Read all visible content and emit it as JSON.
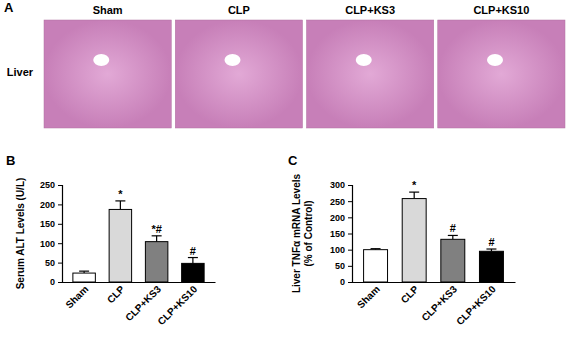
{
  "images": {
    "label": "A",
    "row_label": "Liver",
    "columns": [
      "Sham",
      "CLP",
      "CLP+KS3",
      "CLP+KS10"
    ]
  },
  "chart_data": [
    {
      "type": "bar",
      "title": "B",
      "y_label": "Serum ALT Levels (U/L)",
      "categories": [
        "Sham",
        "CLP",
        "CLP+KS3",
        "CLP+KS10"
      ],
      "values": [
        23,
        187,
        104,
        48
      ],
      "errors": [
        5,
        22,
        15,
        15
      ],
      "colors": [
        "#ffffff",
        "#d9d9d9",
        "#808080",
        "#000000"
      ],
      "ylim": [
        0,
        250
      ],
      "yticks": [
        0,
        50,
        100,
        150,
        200,
        250
      ],
      "annotations": [
        {
          "text": "*",
          "category": "CLP"
        },
        {
          "text": "*#",
          "category": "CLP+KS3"
        },
        {
          "text": "#",
          "category": "CLP+KS10"
        }
      ]
    },
    {
      "type": "bar",
      "title": "C",
      "y_label": [
        "Liver TNFα mRNA Levels",
        "(% of Control)"
      ],
      "categories": [
        "Sham",
        "CLP",
        "CLP+KS3",
        "CLP+KS10"
      ],
      "values": [
        100,
        258,
        132,
        95
      ],
      "errors": [
        3,
        20,
        12,
        7
      ],
      "colors": [
        "#ffffff",
        "#d9d9d9",
        "#808080",
        "#000000"
      ],
      "ylim": [
        0,
        300
      ],
      "yticks": [
        0,
        50,
        100,
        150,
        200,
        250,
        300
      ],
      "annotations": [
        {
          "text": "*",
          "category": "CLP"
        },
        {
          "text": "#",
          "category": "CLP+KS3"
        },
        {
          "text": "#",
          "category": "CLP+KS10"
        }
      ]
    }
  ]
}
